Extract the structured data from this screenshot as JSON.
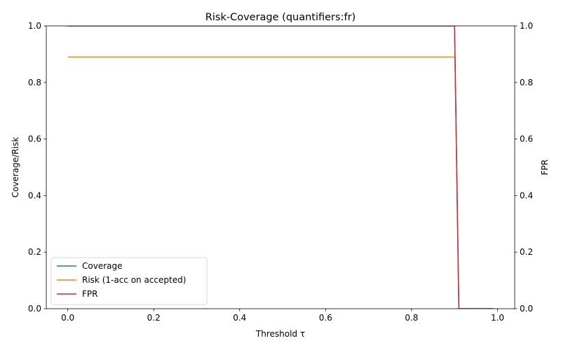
{
  "chart_data": {
    "type": "line",
    "title": "Risk-Coverage (quantifiers:fr)",
    "xlabel": "Threshold τ",
    "ylabel_left": "Coverage/Risk",
    "ylabel_right": "FPR",
    "xlim": [
      -0.05,
      1.04
    ],
    "ylim_left": [
      0,
      1
    ],
    "ylim_right": [
      0,
      1
    ],
    "x_ticks": [
      0.0,
      0.2,
      0.4,
      0.6,
      0.8,
      1.0
    ],
    "x_tick_labels": [
      "0.0",
      "0.2",
      "0.4",
      "0.6",
      "0.8",
      "1.0"
    ],
    "y_ticks": [
      0.0,
      0.2,
      0.4,
      0.6,
      0.8,
      1.0
    ],
    "y_tick_labels": [
      "0.0",
      "0.2",
      "0.4",
      "0.6",
      "0.8",
      "1.0"
    ],
    "grid": false,
    "legend_position": "lower-left",
    "series": [
      {
        "name": "Coverage",
        "axis": "left",
        "color": "#1f77b4",
        "x": [
          0.0,
          0.9,
          0.91,
          0.99
        ],
        "y": [
          1.0,
          1.0,
          0.0,
          0.0
        ]
      },
      {
        "name": "Risk (1-acc on accepted)",
        "axis": "left",
        "color": "#ff7f0e",
        "x": [
          0.0,
          0.9
        ],
        "y": [
          0.89,
          0.89
        ]
      },
      {
        "name": "FPR",
        "axis": "right",
        "color": "#d62728",
        "x": [
          0.0,
          0.9,
          0.91,
          0.99
        ],
        "y": [
          1.0,
          1.0,
          0.0,
          0.0
        ]
      }
    ]
  }
}
